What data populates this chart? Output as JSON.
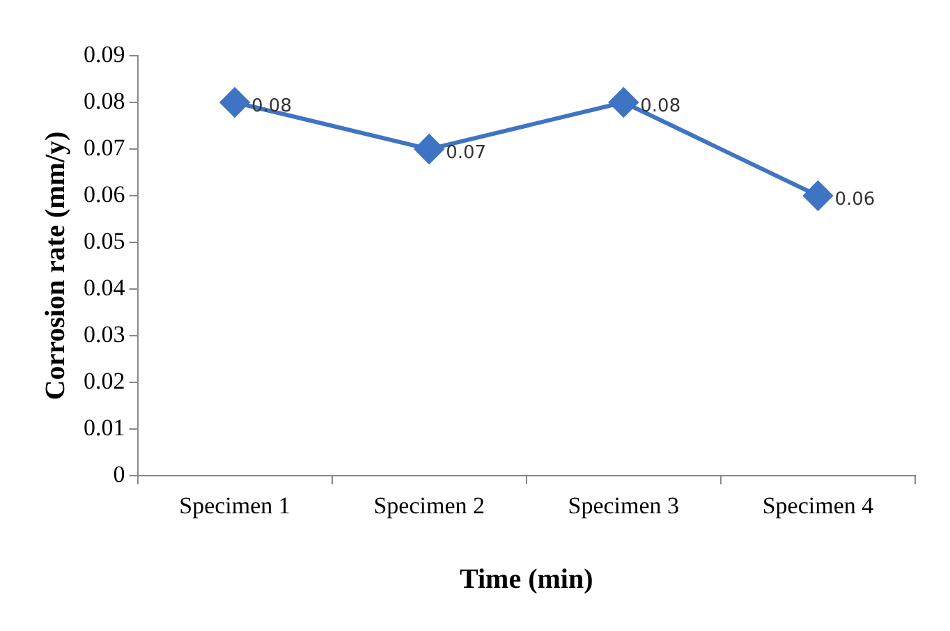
{
  "chart_data": {
    "type": "line",
    "xlabel": "Time (min)",
    "ylabel": "Corrosion rate (mm/y)",
    "categories": [
      "Specimen 1",
      "Specimen 2",
      "Specimen 3",
      "Specimen 4"
    ],
    "series": [
      {
        "color": "#3f73c4",
        "values": [
          0.08,
          0.07,
          0.08,
          0.06
        ]
      }
    ],
    "ylim": [
      0,
      0.09
    ],
    "yticks": [
      0,
      0.01,
      0.02,
      0.03,
      0.04,
      0.05,
      0.06,
      0.07,
      0.08,
      0.09
    ],
    "grid": false,
    "legend": false,
    "marker": "diamond",
    "line_style": "solid",
    "data_labels": true
  }
}
